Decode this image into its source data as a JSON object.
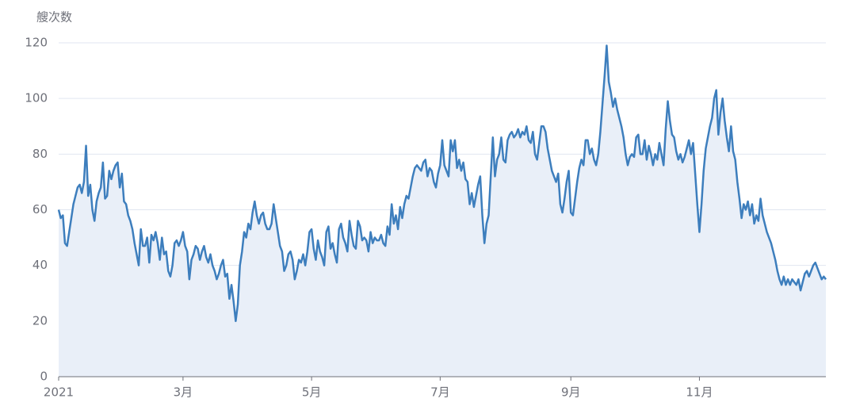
{
  "chart_data": {
    "type": "area",
    "y_label": "艘次数",
    "color": "#3d7ebd",
    "fill": "#e9eff8",
    "grid": true,
    "ylim": [
      0,
      120
    ],
    "yticks": [
      0,
      20,
      40,
      60,
      80,
      100,
      120
    ],
    "categories": [
      "2021",
      null,
      null,
      null,
      null,
      null,
      null,
      null,
      null,
      null,
      null,
      null,
      null,
      null,
      null,
      null,
      null,
      null,
      null,
      null,
      null,
      null,
      null,
      null,
      null,
      null,
      null,
      null,
      null,
      null,
      null,
      null,
      null,
      null,
      null,
      null,
      null,
      null,
      null,
      null,
      null,
      null,
      null,
      null,
      null,
      null,
      null,
      null,
      null,
      null,
      null,
      null,
      null,
      null,
      null,
      null,
      null,
      null,
      null,
      "3月",
      null,
      null,
      null,
      null,
      null,
      null,
      null,
      null,
      null,
      null,
      null,
      null,
      null,
      null,
      null,
      null,
      null,
      null,
      null,
      null,
      null,
      null,
      null,
      null,
      null,
      null,
      null,
      null,
      null,
      null,
      null,
      null,
      null,
      null,
      null,
      null,
      null,
      null,
      null,
      null,
      null,
      null,
      null,
      null,
      null,
      null,
      null,
      null,
      null,
      null,
      null,
      null,
      null,
      null,
      null,
      null,
      null,
      null,
      null,
      null,
      "5月",
      null,
      null,
      null,
      null,
      null,
      null,
      null,
      null,
      null,
      null,
      null,
      null,
      null,
      null,
      null,
      null,
      null,
      null,
      null,
      null,
      null,
      null,
      null,
      null,
      null,
      null,
      null,
      null,
      null,
      null,
      null,
      null,
      null,
      null,
      null,
      null,
      null,
      null,
      null,
      null,
      null,
      null,
      null,
      null,
      null,
      null,
      null,
      null,
      null,
      null,
      null,
      null,
      null,
      null,
      null,
      null,
      null,
      null,
      null,
      null,
      "7月",
      null,
      null,
      null,
      null,
      null,
      null,
      null,
      null,
      null,
      null,
      null,
      null,
      null,
      null,
      null,
      null,
      null,
      null,
      null,
      null,
      null,
      null,
      null,
      null,
      null,
      null,
      null,
      null,
      null,
      null,
      null,
      null,
      null,
      null,
      null,
      null,
      null,
      null,
      null,
      null,
      null,
      null,
      null,
      null,
      null,
      null,
      null,
      null,
      null,
      null,
      null,
      null,
      null,
      null,
      null,
      null,
      null,
      null,
      null,
      null,
      null,
      "9月",
      null,
      null,
      null,
      null,
      null,
      null,
      null,
      null,
      null,
      null,
      null,
      null,
      null,
      null,
      null,
      null,
      null,
      null,
      null,
      null,
      null,
      null,
      null,
      null,
      null,
      null,
      null,
      null,
      null,
      null,
      null,
      null,
      null,
      null,
      null,
      null,
      null,
      null,
      null,
      null,
      null,
      null,
      null,
      null,
      null,
      null,
      null,
      null,
      null,
      null,
      null,
      null,
      null,
      null,
      null,
      null,
      null,
      null,
      null,
      null,
      "11月",
      null,
      null,
      null,
      null,
      null,
      null,
      null,
      null,
      null,
      null,
      null,
      null,
      null,
      null,
      null,
      null,
      null,
      null,
      null,
      null,
      null,
      null,
      null,
      null,
      null,
      null,
      null,
      null,
      null,
      null,
      null,
      null,
      null,
      null,
      null,
      null,
      null,
      null,
      null,
      null,
      null,
      null,
      null,
      null,
      null,
      null,
      null,
      null,
      null,
      null,
      null,
      null,
      null,
      null,
      null,
      null,
      null,
      null,
      null,
      null
    ],
    "values": [
      60,
      57,
      58,
      48,
      47,
      52,
      57,
      62,
      65,
      68,
      69,
      66,
      70,
      83,
      65,
      69,
      60,
      56,
      63,
      66,
      68,
      77,
      64,
      65,
      74,
      71,
      74,
      76,
      77,
      68,
      73,
      63,
      62,
      58,
      56,
      53,
      48,
      44,
      40,
      53,
      47,
      47,
      50,
      41,
      51,
      49,
      52,
      48,
      42,
      50,
      44,
      45,
      38,
      36,
      40,
      48,
      49,
      47,
      49,
      52,
      47,
      45,
      35,
      42,
      44,
      47,
      46,
      42,
      45,
      47,
      43,
      41,
      44,
      40,
      38,
      35,
      37,
      40,
      42,
      36,
      37,
      28,
      33,
      27,
      20,
      26,
      40,
      45,
      52,
      50,
      55,
      53,
      59,
      63,
      58,
      55,
      58,
      59,
      55,
      53,
      53,
      55,
      62,
      57,
      52,
      47,
      45,
      38,
      40,
      44,
      45,
      42,
      35,
      38,
      42,
      41,
      44,
      40,
      45,
      52,
      53,
      46,
      42,
      49,
      45,
      43,
      40,
      52,
      54,
      46,
      48,
      44,
      41,
      53,
      55,
      50,
      48,
      45,
      56,
      51,
      47,
      46,
      56,
      54,
      49,
      50,
      49,
      45,
      52,
      48,
      50,
      49,
      49,
      51,
      48,
      47,
      54,
      51,
      62,
      55,
      58,
      53,
      61,
      57,
      62,
      65,
      64,
      68,
      72,
      75,
      76,
      75,
      74,
      77,
      78,
      72,
      75,
      74,
      70,
      68,
      73,
      76,
      85,
      76,
      74,
      72,
      85,
      81,
      85,
      75,
      78,
      74,
      77,
      71,
      70,
      62,
      66,
      61,
      65,
      69,
      72,
      58,
      48,
      55,
      58,
      72,
      86,
      72,
      78,
      80,
      86,
      78,
      77,
      85,
      87,
      88,
      86,
      87,
      89,
      86,
      88,
      87,
      90,
      85,
      84,
      88,
      80,
      78,
      84,
      90,
      90,
      88,
      82,
      78,
      74,
      72,
      70,
      73,
      62,
      59,
      64,
      70,
      74,
      59,
      58,
      64,
      70,
      75,
      78,
      76,
      85,
      85,
      80,
      82,
      78,
      76,
      80,
      88,
      98,
      108,
      119,
      106,
      102,
      97,
      100,
      96,
      93,
      90,
      86,
      80,
      76,
      79,
      80,
      79,
      86,
      87,
      80,
      80,
      85,
      78,
      83,
      80,
      76,
      80,
      78,
      84,
      80,
      76,
      89,
      99,
      92,
      87,
      86,
      81,
      78,
      80,
      77,
      79,
      82,
      85,
      80,
      84,
      73,
      62,
      52,
      62,
      74,
      82,
      86,
      90,
      93,
      100,
      103,
      87,
      95,
      100,
      92,
      86,
      81,
      90,
      81,
      78,
      70,
      64,
      57,
      62,
      60,
      63,
      58,
      62,
      55,
      58,
      56,
      64,
      58,
      55,
      52,
      50,
      48,
      45,
      42,
      38,
      35,
      33,
      36,
      33,
      35,
      33,
      35,
      34,
      33,
      35,
      31,
      34,
      37,
      38,
      36,
      38,
      40,
      41,
      39,
      37,
      35,
      36,
      35
    ]
  }
}
